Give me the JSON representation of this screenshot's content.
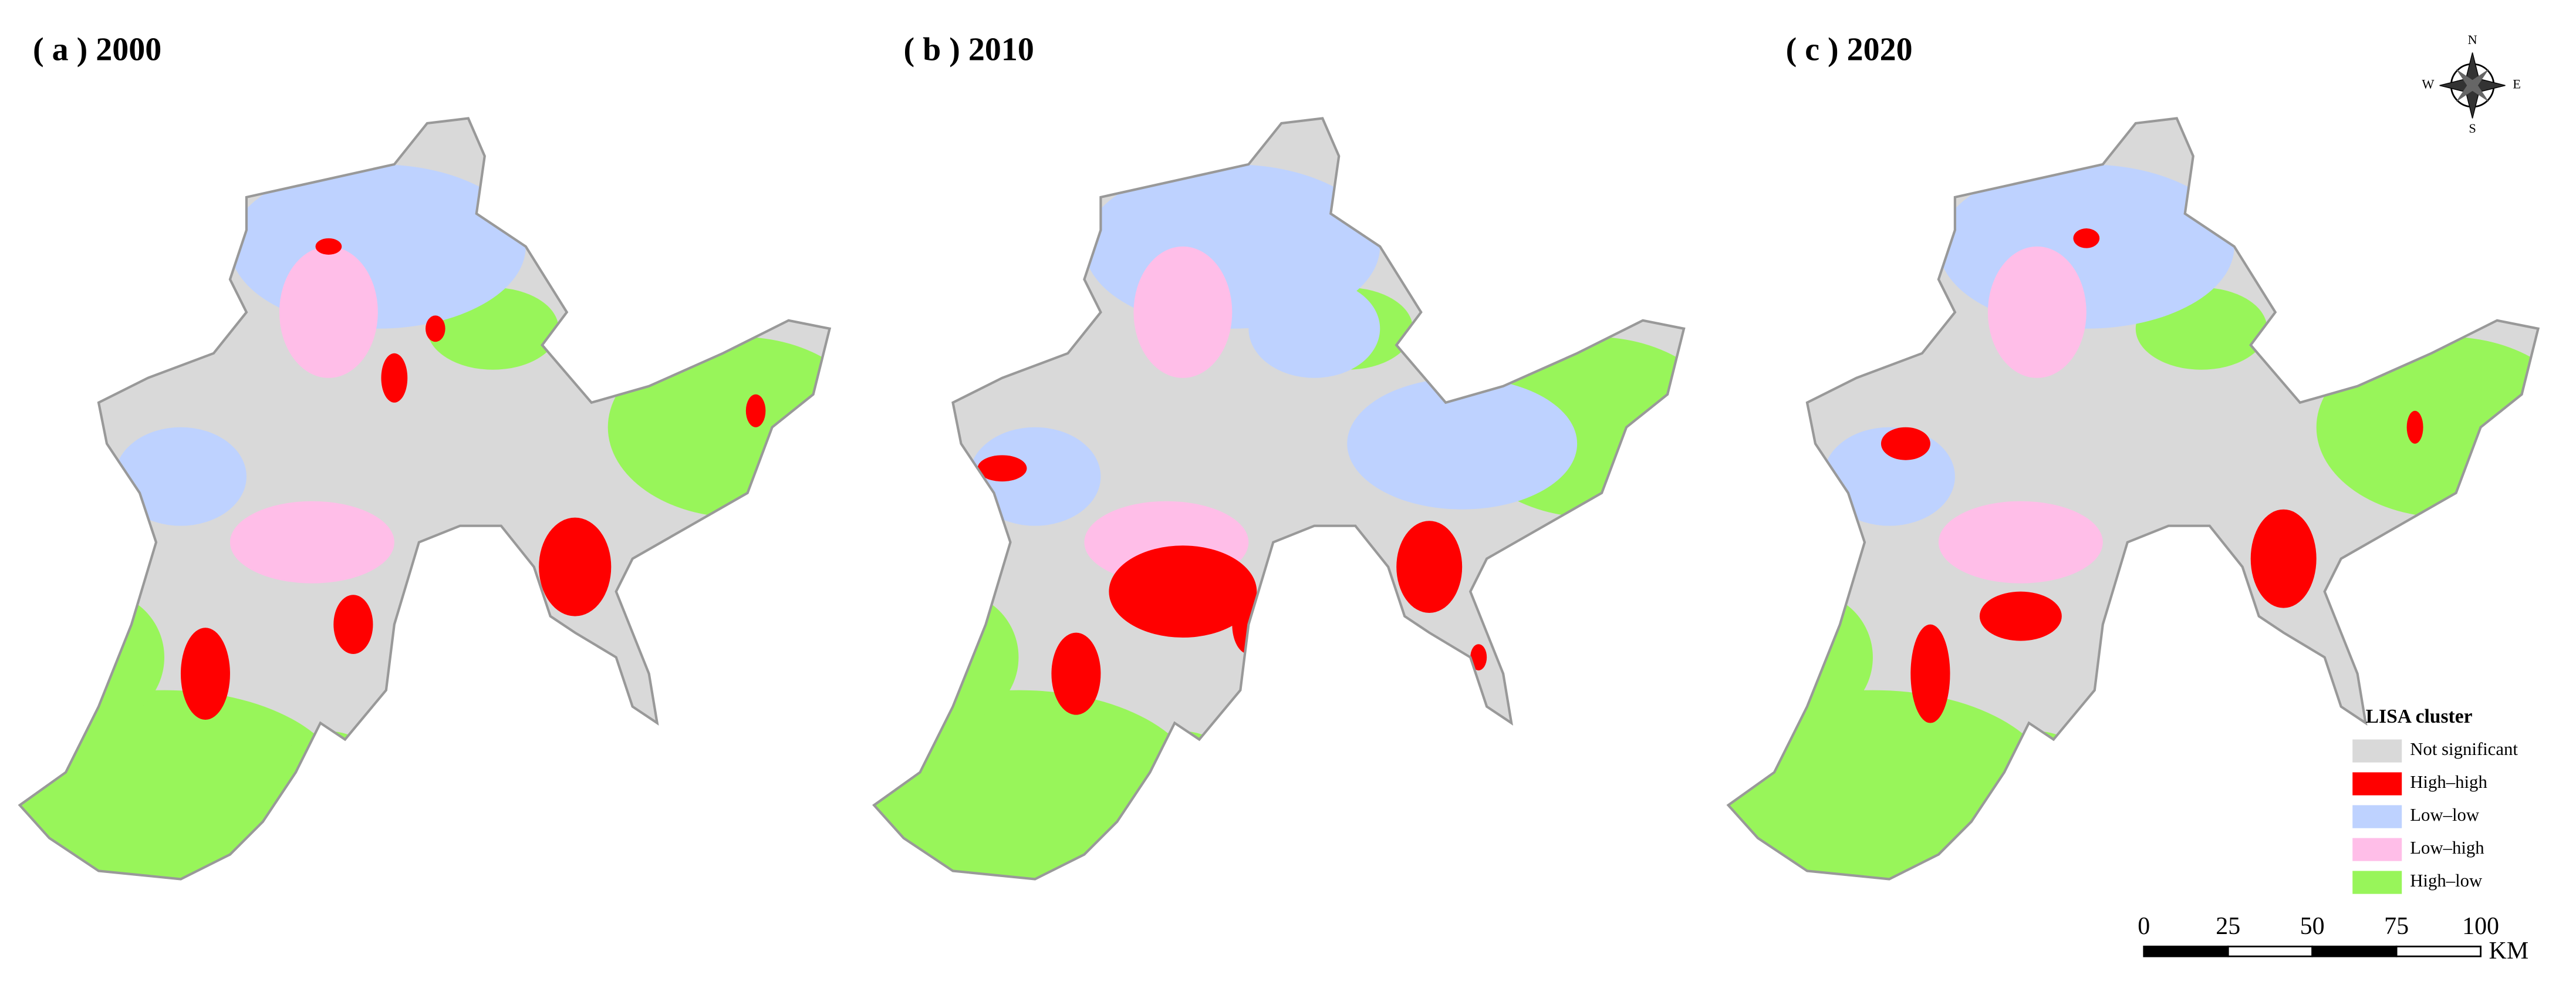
{
  "panels": [
    {
      "title": "( a ) 2000"
    },
    {
      "title": "( b ) 2010"
    },
    {
      "title": "( c ) 2020"
    }
  ],
  "legend": {
    "title": "LISA cluster",
    "items": [
      {
        "label": "Not significant",
        "color": "#d9d9d9"
      },
      {
        "label": "High–high",
        "color": "#ff0000"
      },
      {
        "label": "Low–low",
        "color": "#bed2ff"
      },
      {
        "label": "Low–high",
        "color": "#ffbee8"
      },
      {
        "label": "High–low",
        "color": "#98f55a"
      }
    ]
  },
  "scale_bar": {
    "ticks": [
      0,
      25,
      50,
      75,
      100
    ],
    "unit": "KM"
  },
  "compass": {
    "north": "N",
    "east": "E",
    "south": "S",
    "west": "W"
  }
}
